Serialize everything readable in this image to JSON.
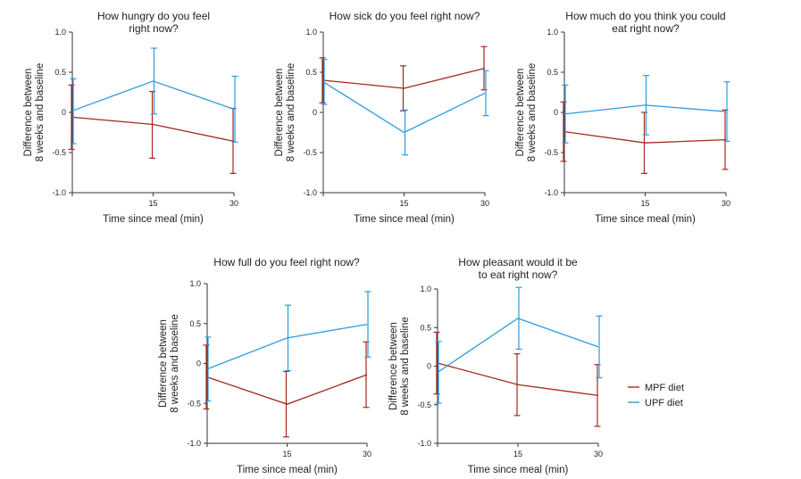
{
  "colors": {
    "MPF diet": "#a5281c",
    "UPF diet": "#2b9be0"
  },
  "legend": [
    {
      "name": "MPF diet",
      "color": "#a5281c"
    },
    {
      "name": "UPF diet",
      "color": "#2b9be0"
    }
  ],
  "chart_data": [
    {
      "type": "line",
      "title": [
        "How hungry do you feel",
        "right now?"
      ],
      "xlabel": "Time since meal (min)",
      "ylabel": [
        "Difference between",
        "8 weeks and baseline"
      ],
      "x": [
        0,
        15,
        30
      ],
      "x_tick_labels": [
        "",
        "15",
        "30"
      ],
      "ylim": [
        -1.0,
        1.0
      ],
      "y_ticks": [
        -1.0,
        -0.5,
        0,
        0.5,
        1.0
      ],
      "y_tick_labels": [
        "-1.0",
        "-0.5",
        "0",
        "0.5",
        "1.0"
      ],
      "series": [
        {
          "name": "MPF diet",
          "values": [
            -0.06,
            -0.15,
            -0.36
          ],
          "err_low": [
            -0.46,
            -0.57,
            -0.76
          ],
          "err_high": [
            0.34,
            0.26,
            0.05
          ]
        },
        {
          "name": "UPF diet",
          "values": [
            0.02,
            0.39,
            0.04
          ],
          "err_low": [
            -0.39,
            -0.02,
            -0.37
          ],
          "err_high": [
            0.42,
            0.8,
            0.45
          ]
        }
      ]
    },
    {
      "type": "line",
      "title": [
        "How sick do you feel right now?"
      ],
      "xlabel": "Time since meal (min)",
      "ylabel": [
        "Difference between",
        "8 weeks and baseline"
      ],
      "x": [
        0,
        15,
        30
      ],
      "x_tick_labels": [
        "",
        "15",
        "30"
      ],
      "ylim": [
        -1.0,
        1.0
      ],
      "y_ticks": [
        -1.0,
        -0.5,
        0,
        0.5,
        1.0
      ],
      "y_tick_labels": [
        "-1.0",
        "-0.5",
        "0",
        "0.5",
        "1.0"
      ],
      "series": [
        {
          "name": "MPF diet",
          "values": [
            0.4,
            0.3,
            0.55
          ],
          "err_low": [
            0.12,
            0.02,
            0.28
          ],
          "err_high": [
            0.68,
            0.58,
            0.82
          ]
        },
        {
          "name": "UPF diet",
          "values": [
            0.38,
            -0.25,
            0.24
          ],
          "err_low": [
            0.1,
            -0.53,
            -0.04
          ],
          "err_high": [
            0.66,
            0.03,
            0.52
          ]
        }
      ]
    },
    {
      "type": "line",
      "title": [
        "How much do you think you could",
        "eat right now?"
      ],
      "xlabel": "Time since meal (min)",
      "ylabel": [
        "Difference between",
        "8 weeks and baseline"
      ],
      "x": [
        0,
        15,
        30
      ],
      "x_tick_labels": [
        "",
        "15",
        "30"
      ],
      "ylim": [
        -1.0,
        1.0
      ],
      "y_ticks": [
        -1.0,
        -0.5,
        0,
        0.5,
        1.0
      ],
      "y_tick_labels": [
        "-1.0",
        "-0.5",
        "0",
        "0.5",
        "1.0"
      ],
      "series": [
        {
          "name": "MPF diet",
          "values": [
            -0.24,
            -0.38,
            -0.34
          ],
          "err_low": [
            -0.61,
            -0.76,
            -0.71
          ],
          "err_high": [
            0.13,
            0.0,
            0.03
          ]
        },
        {
          "name": "UPF diet",
          "values": [
            -0.02,
            0.09,
            0.01
          ],
          "err_low": [
            -0.38,
            -0.28,
            -0.36
          ],
          "err_high": [
            0.34,
            0.46,
            0.38
          ]
        }
      ]
    },
    {
      "type": "line",
      "title": [
        "How full do you feel right now?"
      ],
      "xlabel": "Time since meal (min)",
      "ylabel": [
        "Difference between",
        "8 weeks and baseline"
      ],
      "x": [
        0,
        15,
        30
      ],
      "x_tick_labels": [
        "",
        "15",
        "30"
      ],
      "ylim": [
        -1.0,
        1.0
      ],
      "y_ticks": [
        -1.0,
        -0.5,
        0,
        0.5,
        1.0
      ],
      "y_tick_labels": [
        "-1.0",
        "-0.5",
        "0",
        "0.5",
        "1.0"
      ],
      "series": [
        {
          "name": "MPF diet",
          "values": [
            -0.17,
            -0.51,
            -0.14
          ],
          "err_low": [
            -0.57,
            -0.92,
            -0.55
          ],
          "err_high": [
            0.23,
            -0.1,
            0.27
          ]
        },
        {
          "name": "UPF diet",
          "values": [
            -0.07,
            0.32,
            0.49
          ],
          "err_low": [
            -0.47,
            -0.09,
            0.08
          ],
          "err_high": [
            0.33,
            0.73,
            0.9
          ]
        }
      ]
    },
    {
      "type": "line",
      "title": [
        "How pleasant would it be",
        "to eat right now?"
      ],
      "xlabel": "Time since meal (min)",
      "ylabel": [
        "Difference between",
        "8 weeks and baseline"
      ],
      "x": [
        0,
        15,
        30
      ],
      "x_tick_labels": [
        "",
        "15",
        "30"
      ],
      "ylim": [
        -1.0,
        1.0
      ],
      "y_ticks": [
        -1.0,
        -0.5,
        0,
        0.5,
        1.0
      ],
      "y_tick_labels": [
        "-1.0",
        "-0.5",
        "0",
        "0.5",
        "1.0"
      ],
      "series": [
        {
          "name": "MPF diet",
          "values": [
            0.04,
            -0.24,
            -0.38
          ],
          "err_low": [
            -0.36,
            -0.64,
            -0.78
          ],
          "err_high": [
            0.44,
            0.16,
            0.02
          ]
        },
        {
          "name": "UPF diet",
          "values": [
            -0.08,
            0.62,
            0.25
          ],
          "err_low": [
            -0.48,
            0.22,
            -0.15
          ],
          "err_high": [
            0.32,
            1.02,
            0.65
          ]
        }
      ]
    }
  ]
}
